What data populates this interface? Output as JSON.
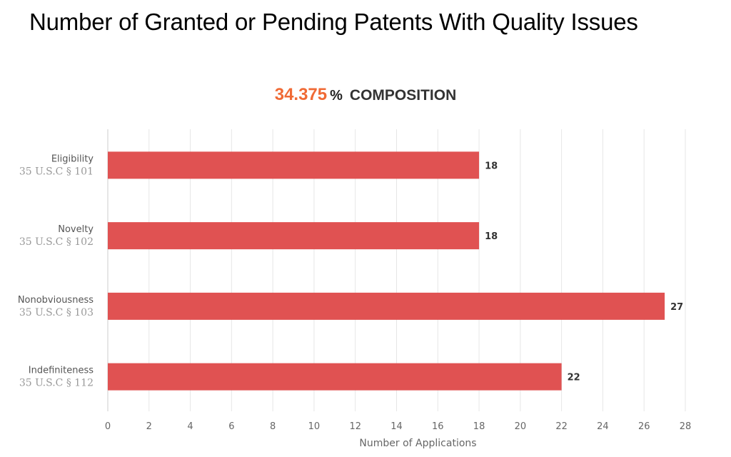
{
  "page": {
    "title": "Number of Granted or Pending Patents With Quality Issues"
  },
  "summary": {
    "value": "34.375",
    "unit": "%",
    "label": "COMPOSITION"
  },
  "colors": {
    "bar": "#e05252",
    "accent": "#f06a35",
    "grid": "#e6e6e6",
    "axis_text": "#666666",
    "label_sub": "#999999"
  },
  "chart_data": {
    "type": "bar",
    "orientation": "horizontal",
    "categories": [
      {
        "name": "Eligibility",
        "statute": "35 U.S.C § 101"
      },
      {
        "name": "Novelty",
        "statute": "35 U.S.C § 102"
      },
      {
        "name": "Nonobviousness",
        "statute": "35 U.S.C § 103"
      },
      {
        "name": "Indefiniteness",
        "statute": "35 U.S.C § 112"
      }
    ],
    "values": [
      18,
      18,
      27,
      22
    ],
    "xlabel": "Number of Applications",
    "ylabel": "",
    "xlim": [
      0,
      28
    ],
    "xticks": [
      "0",
      "2",
      "4",
      "6",
      "8",
      "10",
      "12",
      "14",
      "16",
      "18",
      "20",
      "22",
      "24",
      "26",
      "28"
    ],
    "grid": true,
    "legend": "none",
    "data_labels": [
      "18",
      "18",
      "27",
      "22"
    ]
  }
}
